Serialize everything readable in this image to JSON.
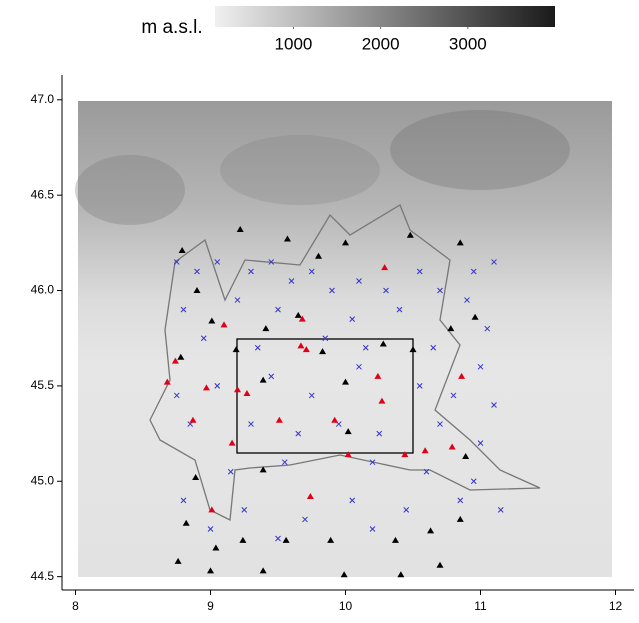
{
  "chart_data": {
    "type": "scatter",
    "xlim": [
      7.9,
      12.1
    ],
    "ylim": [
      44.43,
      47.13
    ],
    "xticks": [
      8,
      9,
      10,
      11,
      12
    ],
    "yticks": [
      44.5,
      {
        "value": 45,
        "label": "45.0"
      },
      45.5,
      {
        "value": 46,
        "label": "46.0"
      },
      46.5,
      {
        "value": 47,
        "label": "47.0"
      }
    ],
    "colorbar": {
      "label": "m a.s.l.",
      "lim": [
        100,
        4000
      ],
      "ticks": [
        1000,
        2000,
        3000
      ],
      "colors": [
        "#f0f0f0",
        "#1a1a1a"
      ]
    },
    "series": [
      {
        "color": "#3333cc",
        "marker": "x",
        "x": [
          8.75,
          8.9,
          9.05,
          9.3,
          9.45,
          9.6,
          9.75,
          9.9,
          10.1,
          10.3,
          10.55,
          10.7,
          10.95,
          11.1,
          8.8,
          9.2,
          9.5,
          10.05,
          10.4,
          10.9,
          11.05,
          8.95,
          9.35,
          9.85,
          10.15,
          10.65,
          11.0,
          8.75,
          9.05,
          9.45,
          9.75,
          10.1,
          10.55,
          10.8,
          11.1,
          8.85,
          9.3,
          9.65,
          9.95,
          10.25,
          10.7,
          11.0,
          9.15,
          9.55,
          10.2,
          10.6,
          10.95,
          8.8,
          9.25,
          9.7,
          10.05,
          10.45,
          10.85,
          9.0,
          9.5,
          10.2,
          11.15
        ],
        "values": [
          46.15,
          46.1,
          46.15,
          46.1,
          46.15,
          46.05,
          46.1,
          46.0,
          46.05,
          46.0,
          46.1,
          46.0,
          46.1,
          46.15,
          45.9,
          45.95,
          45.9,
          45.85,
          45.9,
          45.95,
          45.8,
          45.75,
          45.7,
          45.75,
          45.7,
          45.7,
          45.6,
          45.45,
          45.5,
          45.55,
          45.45,
          45.6,
          45.5,
          45.45,
          45.4,
          45.3,
          45.3,
          45.25,
          45.3,
          45.25,
          45.3,
          45.2,
          45.05,
          45.1,
          45.1,
          45.05,
          45.0,
          44.9,
          44.85,
          44.8,
          44.9,
          44.85,
          44.9,
          44.75,
          44.7,
          44.75,
          44.85
        ]
      },
      {
        "color": "#000000",
        "marker": "triangle",
        "x": [
          8.79,
          9.22,
          9.57,
          9.8,
          10.0,
          10.48,
          10.85,
          8.9,
          9.01,
          9.41,
          9.65,
          8.78,
          9.19,
          9.39,
          9.83,
          10.0,
          10.28,
          10.5,
          10.78,
          10.96,
          8.82,
          9.04,
          9.24,
          9.56,
          9.89,
          10.37,
          10.63,
          10.85,
          8.76,
          9.0,
          9.39,
          9.99,
          10.41,
          10.7,
          8.89,
          9.39,
          10.02,
          10.89
        ],
        "values": [
          46.21,
          46.32,
          46.27,
          46.18,
          46.25,
          46.29,
          46.25,
          46.0,
          45.84,
          45.8,
          45.87,
          45.65,
          45.69,
          45.53,
          45.68,
          45.52,
          45.72,
          45.69,
          45.8,
          45.86,
          44.78,
          44.65,
          44.69,
          44.69,
          44.69,
          44.69,
          44.74,
          44.8,
          44.58,
          44.53,
          44.53,
          44.51,
          44.51,
          44.56,
          45.02,
          45.06,
          45.26,
          45.13
        ]
      },
      {
        "color": "#e0001a",
        "marker": "triangle",
        "x": [
          8.74,
          8.68,
          8.87,
          9.1,
          8.97,
          9.16,
          9.2,
          9.27,
          9.51,
          9.68,
          9.67,
          9.71,
          9.92,
          10.02,
          10.24,
          10.29,
          10.27,
          10.44,
          10.59,
          10.86,
          10.79,
          9.74,
          9.01
        ],
        "values": [
          45.63,
          45.52,
          45.32,
          45.82,
          45.49,
          45.2,
          45.48,
          45.46,
          45.32,
          45.85,
          45.71,
          45.69,
          45.32,
          45.14,
          45.55,
          46.12,
          45.42,
          45.14,
          45.16,
          45.55,
          45.18,
          44.92,
          44.85
        ]
      }
    ]
  }
}
